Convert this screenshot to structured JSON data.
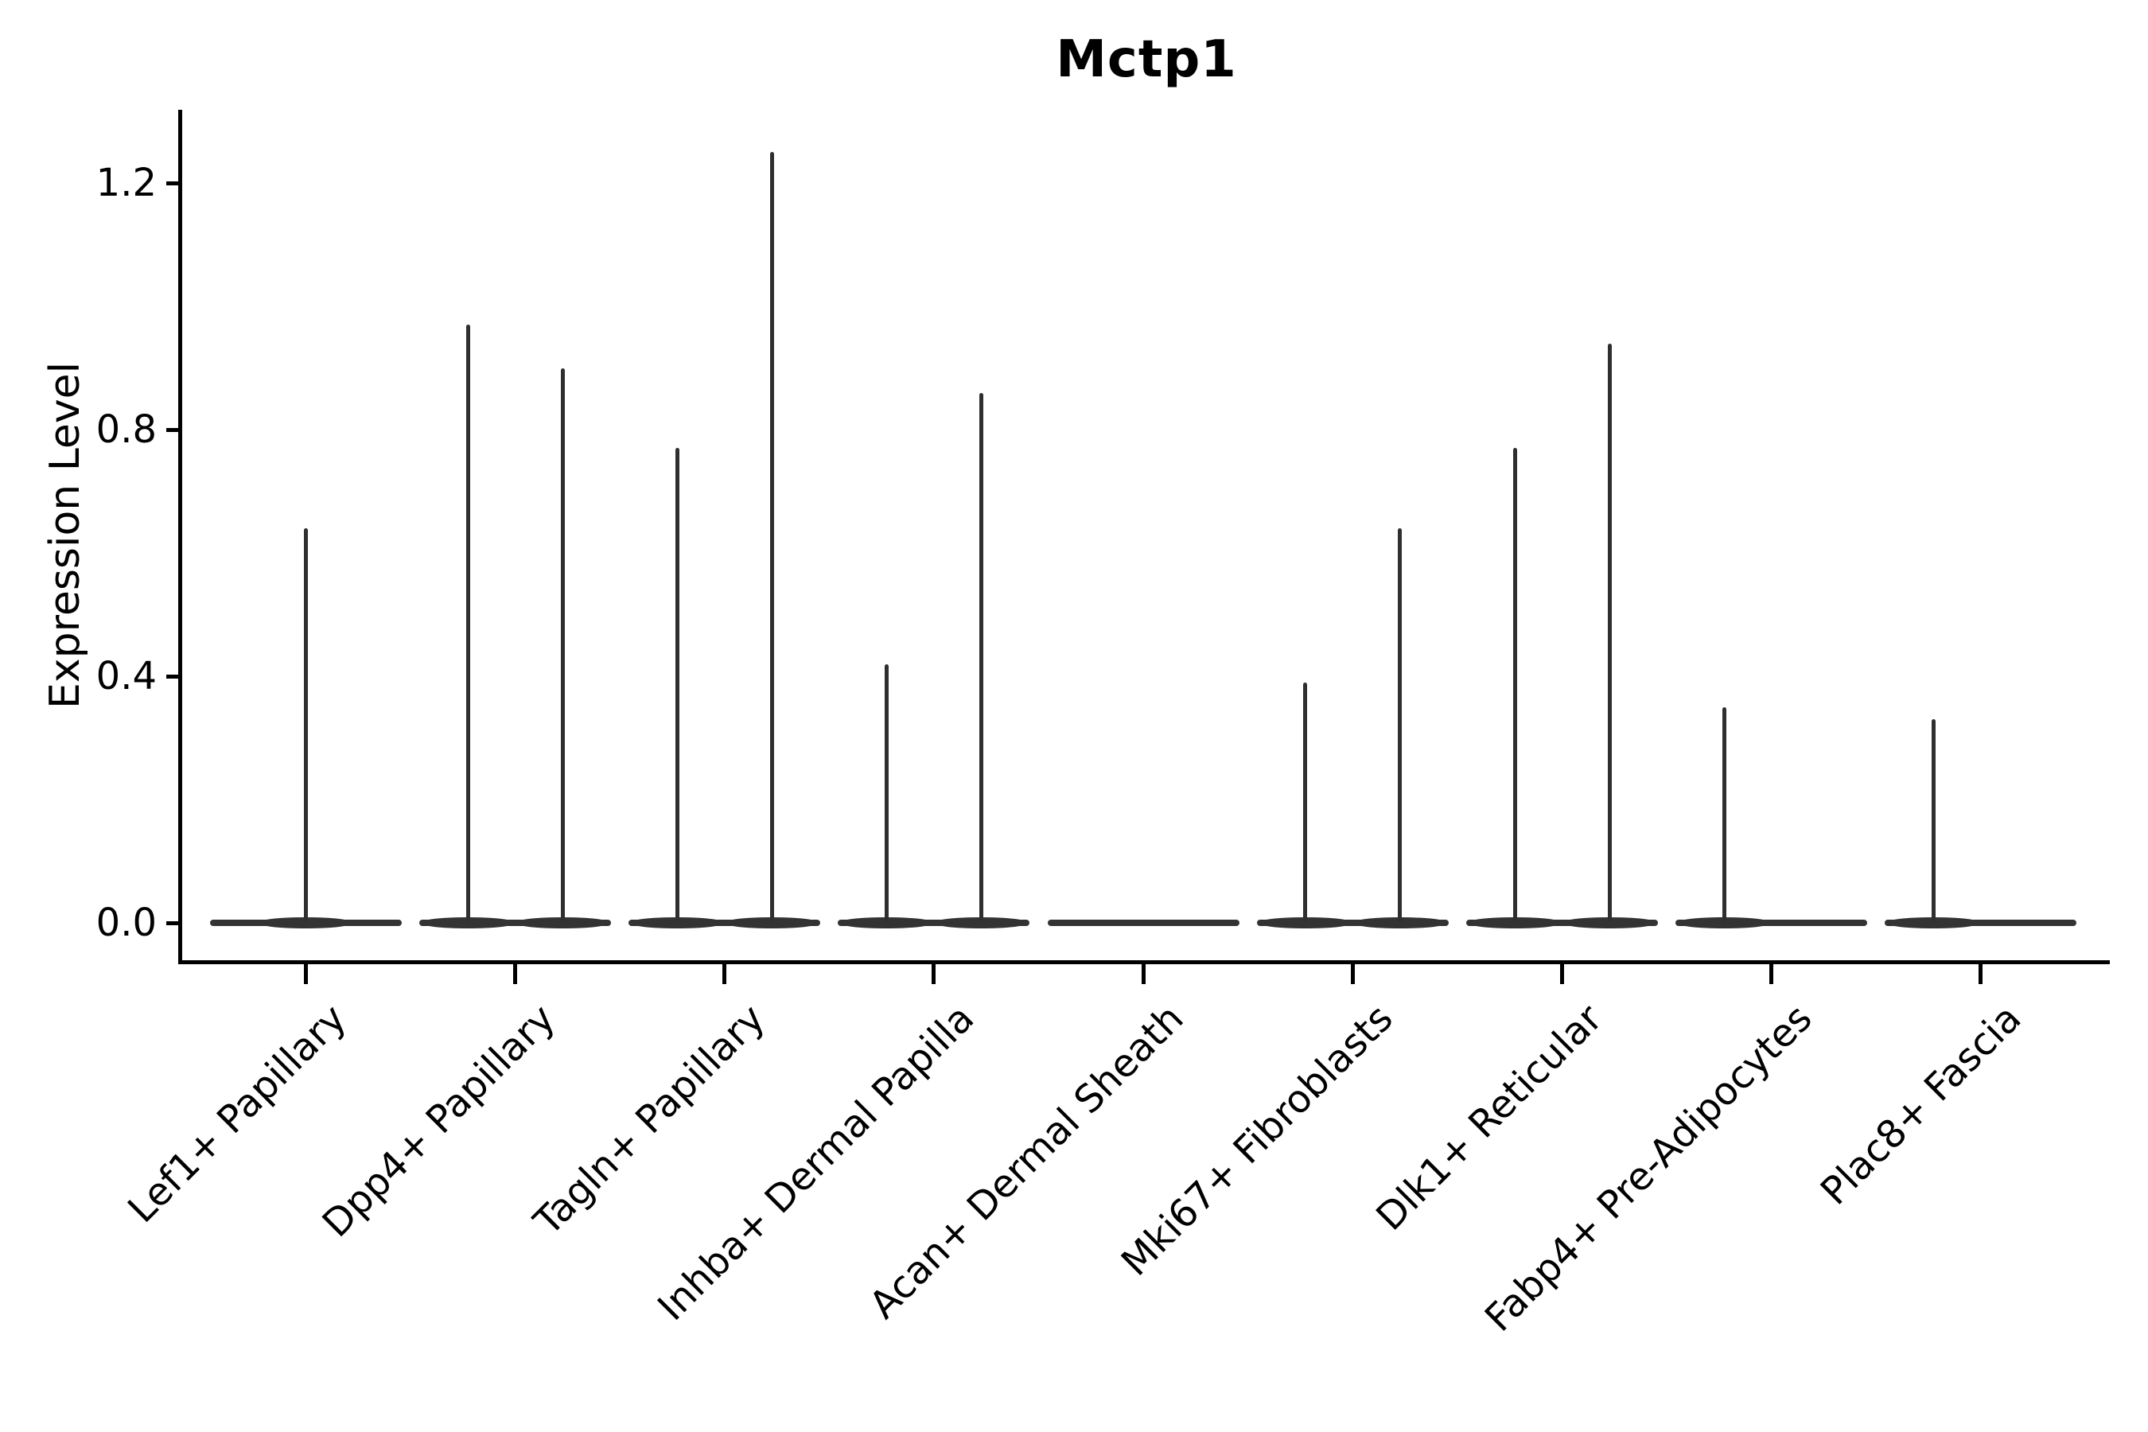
{
  "page": {
    "background_color": "#ffffff",
    "text_color": "#000000",
    "axis_color": "#000000",
    "violin_color": "#333333"
  },
  "chart_data": {
    "type": "violin",
    "title": "Mctp1",
    "xlabel": "",
    "ylabel": "Expression Level",
    "grid": false,
    "legend": null,
    "yticks": [
      "0.0",
      "0.4",
      "0.8",
      "1.2"
    ],
    "ytick_values": [
      0.0,
      0.4,
      0.8,
      1.2
    ],
    "ylim": [
      -0.06,
      1.32
    ],
    "baseline_value": 0.0,
    "categories": [
      "Lef1+ Papillary",
      "Dpp4+ Papillary",
      "Tagln+ Papillary",
      "Inhba+ Dermal Papilla",
      "Acan+ Dermal Sheath",
      "Mki67+ Fibroblasts",
      "Dlk1+ Reticular",
      "Fabp4+ Pre-Adipocytes",
      "Plac8+ Fascia"
    ],
    "violins": [
      [
        {
          "pos": "center",
          "peak": 0.64
        }
      ],
      [
        {
          "pos": "left",
          "peak": 0.97
        },
        {
          "pos": "right",
          "peak": 0.9
        }
      ],
      [
        {
          "pos": "left",
          "peak": 0.77
        },
        {
          "pos": "right",
          "peak": 1.25
        }
      ],
      [
        {
          "pos": "left",
          "peak": 0.42
        },
        {
          "pos": "right",
          "peak": 0.86
        }
      ],
      [],
      [
        {
          "pos": "left",
          "peak": 0.39
        },
        {
          "pos": "right",
          "peak": 0.64
        }
      ],
      [
        {
          "pos": "left",
          "peak": 0.77
        },
        {
          "pos": "right",
          "peak": 0.94
        }
      ],
      [
        {
          "pos": "left",
          "peak": 0.35
        }
      ],
      [
        {
          "pos": "left",
          "peak": 0.33
        }
      ]
    ]
  }
}
